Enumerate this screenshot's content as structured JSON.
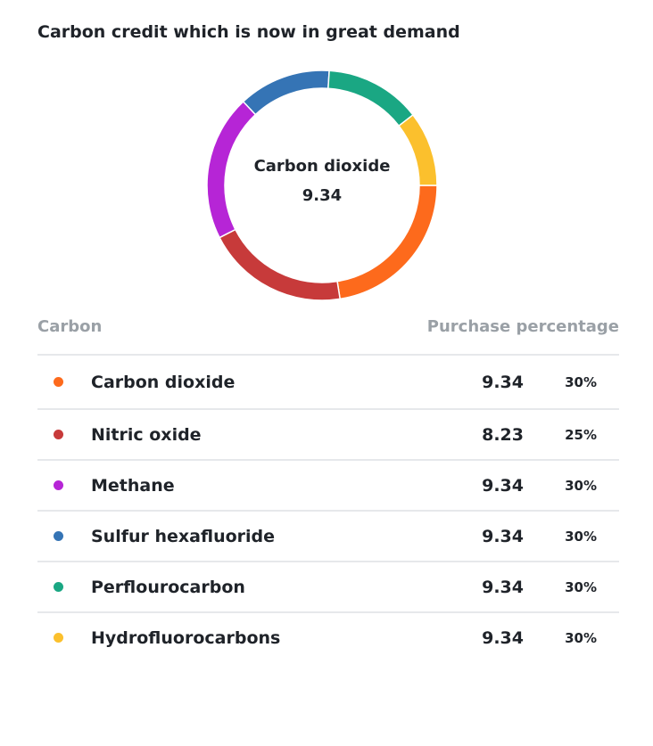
{
  "title": "Carbon credit which is now in great demand",
  "center": {
    "label": "Carbon dioxide",
    "value": "9.34"
  },
  "table": {
    "header_carbon": "Carbon",
    "header_purchase": "Purchase percentage"
  },
  "chart_data": {
    "type": "pie",
    "donut": true,
    "title": "Carbon credit which is now in great demand",
    "categories": [
      "Carbon dioxide",
      "Nitric oxide",
      "Methane",
      "Sulfur hexafluoride",
      "Perflourocarbon",
      "Hydrofluorocarbons"
    ],
    "values": [
      30,
      25,
      30,
      30,
      30,
      30
    ],
    "slices": [
      {
        "name": "Carbon dioxide",
        "amount": "9.34",
        "percent": "30%",
        "share": 0.225,
        "color": "#fd6a1c"
      },
      {
        "name": "Nitric oxide",
        "amount": "8.23",
        "percent": "25%",
        "share": 0.2,
        "color": "#c73a3a"
      },
      {
        "name": "Methane",
        "amount": "9.34",
        "percent": "30%",
        "share": 0.205,
        "color": "#b625d6"
      },
      {
        "name": "Sulfur hexafluoride",
        "amount": "9.34",
        "percent": "30%",
        "share": 0.13,
        "color": "#3574b5"
      },
      {
        "name": "Perflourocarbon",
        "amount": "9.34",
        "percent": "30%",
        "share": 0.135,
        "color": "#1aa783"
      },
      {
        "name": "Hydrofluorocarbons",
        "amount": "9.34",
        "percent": "30%",
        "share": 0.105,
        "color": "#fbc02d"
      }
    ]
  }
}
